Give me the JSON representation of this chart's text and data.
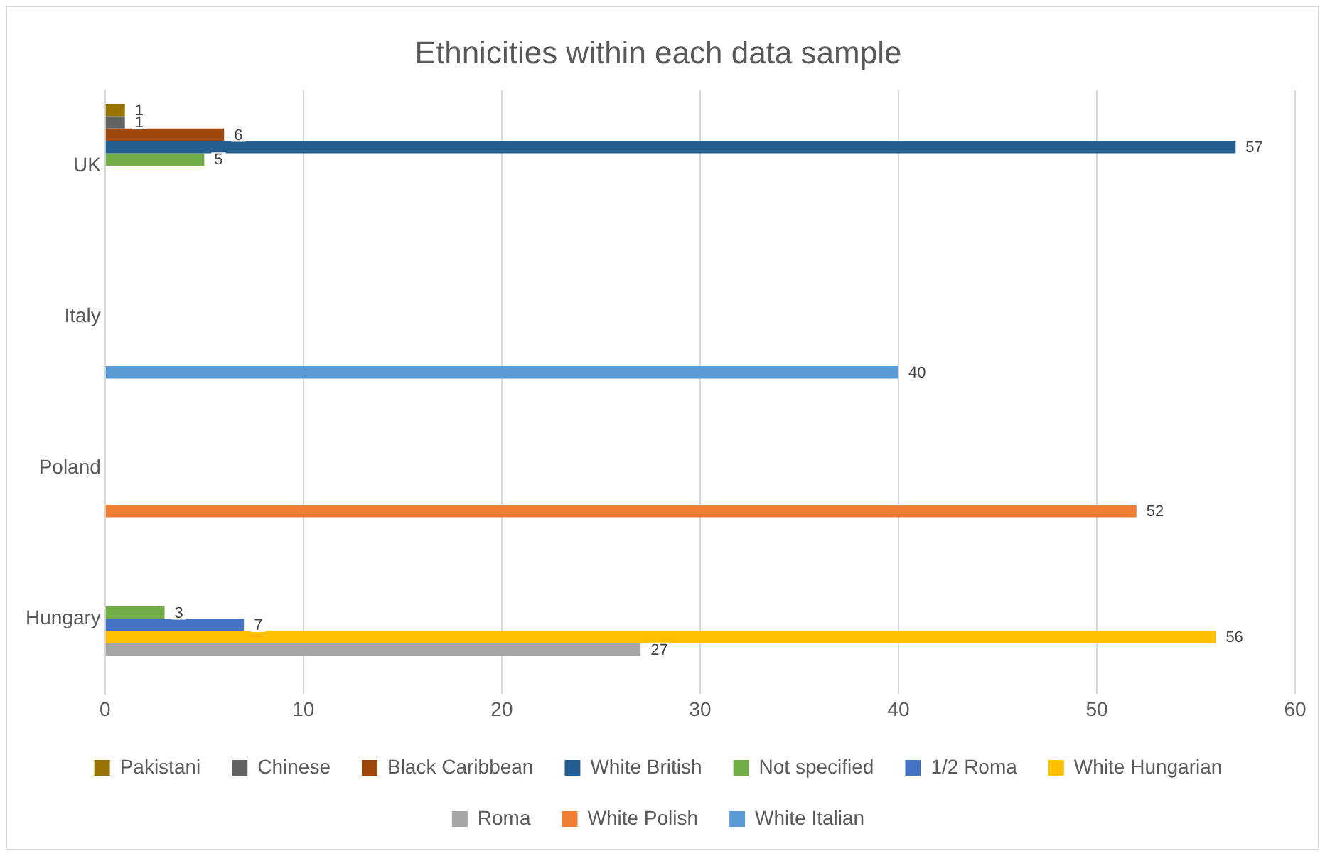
{
  "chart_data": {
    "type": "bar",
    "orientation": "horizontal",
    "title": "Ethnicities within each data sample",
    "categories": [
      "UK",
      "Italy",
      "Poland",
      "Hungary"
    ],
    "series": [
      {
        "name": "Pakistani",
        "color": "#997300",
        "values": [
          1,
          null,
          null,
          null
        ]
      },
      {
        "name": "Chinese",
        "color": "#636363",
        "values": [
          1,
          null,
          null,
          null
        ]
      },
      {
        "name": "Black Caribbean",
        "color": "#9e480e",
        "values": [
          6,
          null,
          null,
          null
        ]
      },
      {
        "name": "White British",
        "color": "#255e91",
        "values": [
          57,
          null,
          null,
          null
        ]
      },
      {
        "name": "Not specified",
        "color": "#70ad47",
        "values": [
          5,
          null,
          null,
          3
        ]
      },
      {
        "name": "1/2 Roma",
        "color": "#4472c4",
        "values": [
          null,
          null,
          null,
          7
        ]
      },
      {
        "name": "White Hungarian",
        "color": "#ffc000",
        "values": [
          null,
          null,
          null,
          56
        ]
      },
      {
        "name": "Roma",
        "color": "#a5a5a5",
        "values": [
          null,
          null,
          null,
          27
        ]
      },
      {
        "name": "White Polish",
        "color": "#ed7d31",
        "values": [
          null,
          null,
          52,
          null
        ]
      },
      {
        "name": "White Italian",
        "color": "#5b9bd5",
        "values": [
          null,
          40,
          null,
          null
        ]
      }
    ],
    "xlim": [
      0,
      60
    ],
    "xticks": [
      0,
      10,
      20,
      30,
      40,
      50,
      60
    ],
    "grid": "x",
    "legend": "bottom",
    "data_labels": true
  }
}
